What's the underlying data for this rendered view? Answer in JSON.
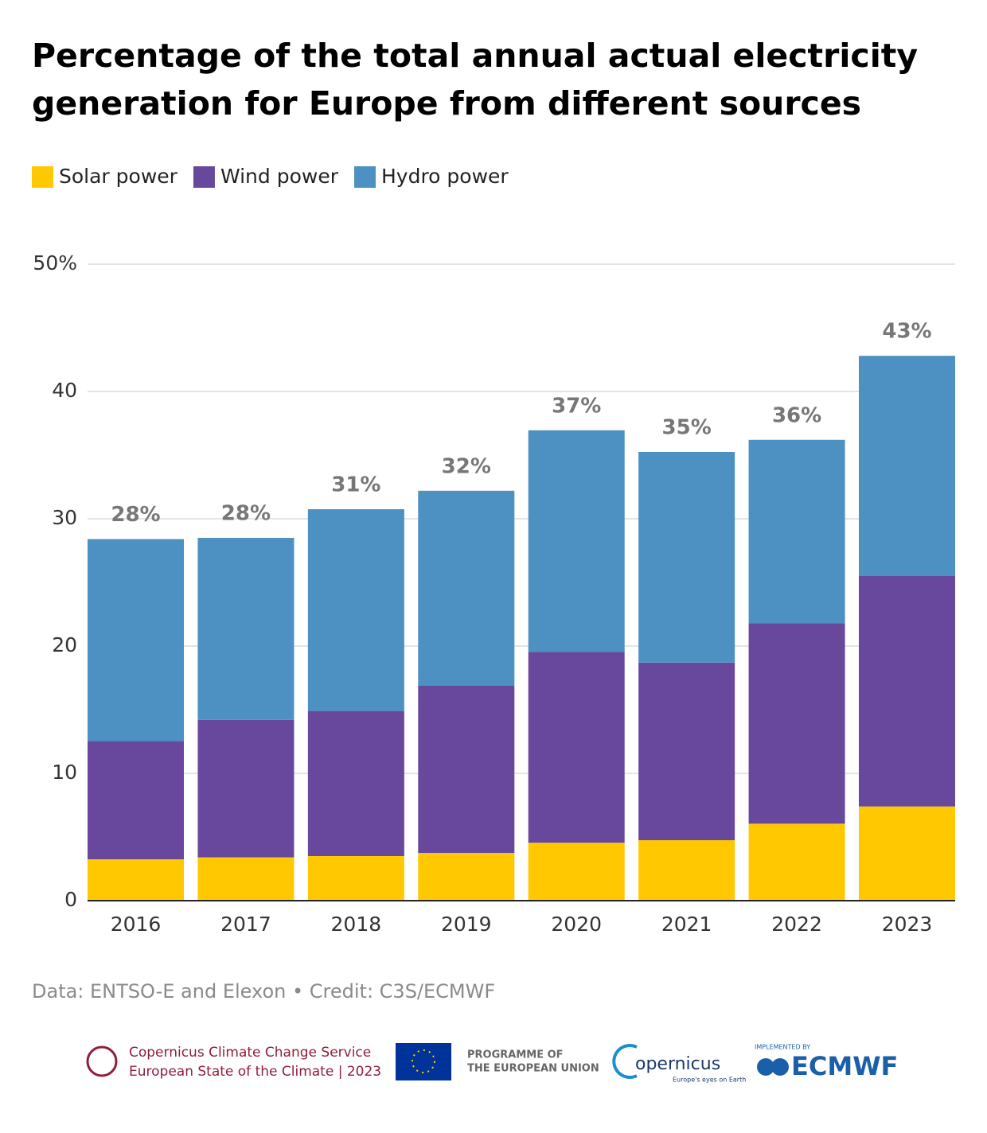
{
  "chart_data": {
    "type": "stacked-bar",
    "title": "Percentage of the total annual actual electricity generation for Europe from different sources",
    "categories": [
      "2016",
      "2017",
      "2018",
      "2019",
      "2020",
      "2021",
      "2022",
      "2023"
    ],
    "series": [
      {
        "name": "Solar power",
        "color": "#ffc800",
        "values": [
          3.25,
          3.4,
          3.5,
          3.75,
          4.55,
          4.75,
          6.05,
          7.4
        ]
      },
      {
        "name": "Wind power",
        "color": "#68489c",
        "values": [
          9.3,
          10.8,
          11.4,
          13.15,
          15.0,
          13.95,
          15.75,
          18.1
        ]
      },
      {
        "name": "Hydro power",
        "color": "#4d90c2",
        "values": [
          15.85,
          14.3,
          15.85,
          15.3,
          17.4,
          16.55,
          14.4,
          17.3
        ]
      }
    ],
    "total_labels": [
      "28%",
      "28%",
      "31%",
      "32%",
      "37%",
      "35%",
      "36%",
      "43%"
    ],
    "ylim": [
      0,
      50
    ],
    "yticks": [
      0,
      10,
      20,
      30,
      40,
      {
        "value": 50,
        "label": "50%"
      }
    ],
    "grid": true,
    "source": "Data: ENTSO-E and Elexon • Credit: C3S/ECMWF"
  },
  "footer": {
    "c3s_name": "Copernicus Climate Change Service",
    "c3s_report": "European State of the Climate | 2023",
    "eu_line1": "PROGRAMME OF",
    "eu_line2": "THE EUROPEAN UNION",
    "copernicus": "opernicus",
    "copernicus_tagline": "Europe's eyes on Earth",
    "ecmwf_caption": "IMPLEMENTED BY",
    "ecmwf": "ECMWF"
  }
}
